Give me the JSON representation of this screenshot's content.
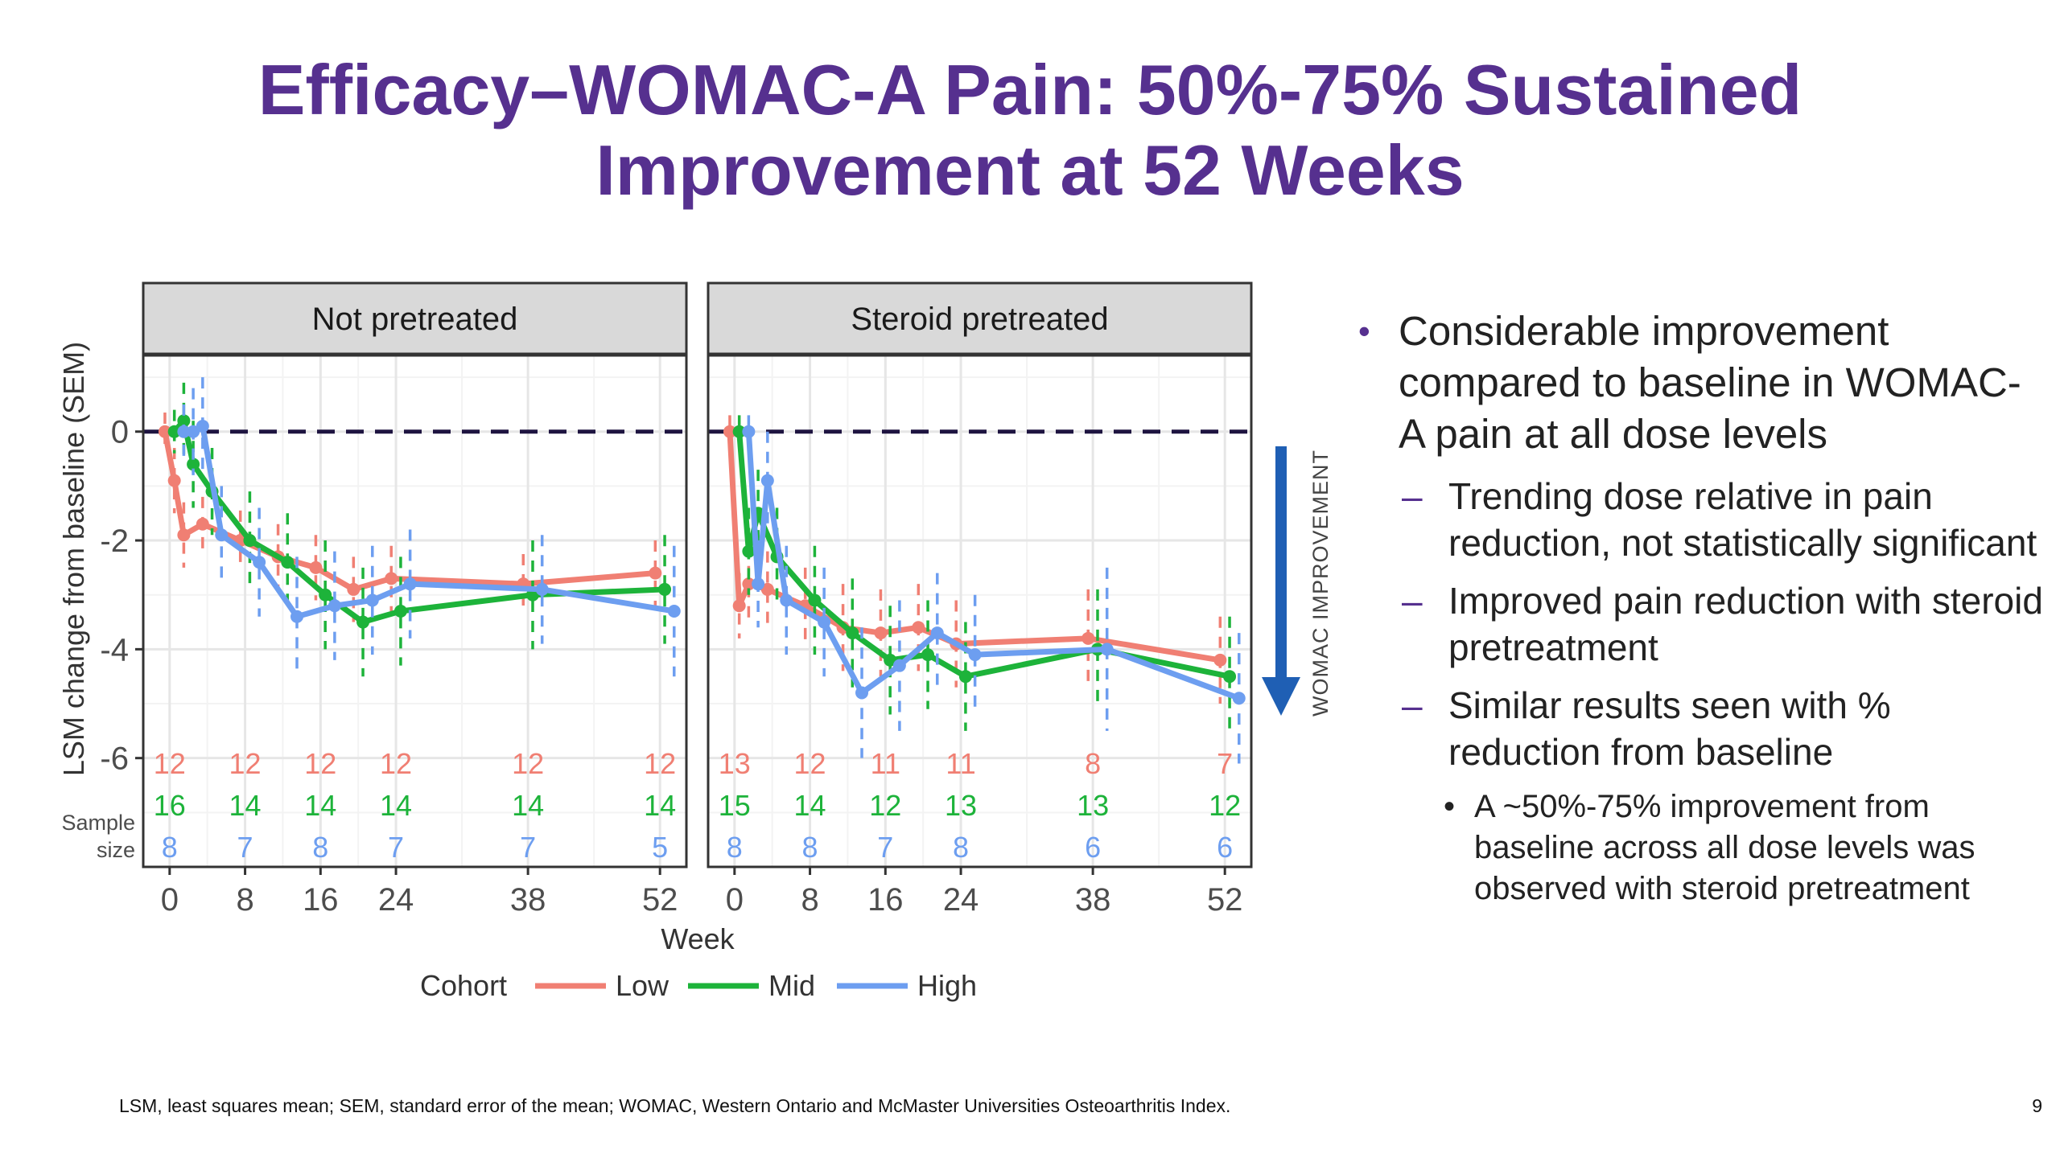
{
  "slide": {
    "title_line1": "Efficacy–WOMAC-A Pain: 50%-75% Sustained",
    "title_line2": "Improvement at 52 Weeks",
    "title_color": "#56308f",
    "footnote": "LSM, least squares mean; SEM, standard error of the mean; WOMAC, Western Ontario and McMaster Universities Osteoarthritis Index.",
    "page_number": "9"
  },
  "annotation": {
    "arrow_label": "WOMAC IMPROVEMENT",
    "arrow_color": "#1f5fb4"
  },
  "bullets": {
    "main": "Considerable improvement compared to baseline in WOMAC-A pain at all dose levels",
    "sub": [
      "Trending dose relative in pain reduction, not statistically significant",
      "Improved pain reduction with steroid pretreatment",
      "Similar results seen with % reduction from baseline"
    ],
    "subsub": "A ~50%-75% improvement from baseline across all dose levels was observed with steroid pretreatment"
  },
  "chart_data": {
    "type": "line",
    "ylabel": "LSM change from baseline (SEM)",
    "xlabel": "Week",
    "y_ticks": [
      0,
      -2,
      -4,
      -6
    ],
    "x_ticks": [
      0,
      8,
      16,
      24,
      38,
      52
    ],
    "ylim": [
      -8.0,
      1.4
    ],
    "xlim": [
      -2.8,
      54.8
    ],
    "reference_line": 0,
    "legend_title": "Cohort",
    "legend_position": "bottom",
    "sample_size_label": [
      "Sample",
      "size"
    ],
    "series_colors": {
      "Low": "#f07f73",
      "Mid": "#1db33a",
      "High": "#6d9ef0"
    },
    "panels": [
      {
        "name": "Not pretreated",
        "series": [
          {
            "name": "Low",
            "x": [
              0,
              1,
              2,
              4,
              8,
              12,
              16,
              20,
              24,
              38,
              52
            ],
            "y": [
              0,
              -0.9,
              -1.9,
              -1.7,
              -2.0,
              -2.3,
              -2.5,
              -2.9,
              -2.7,
              -2.8,
              -2.6
            ],
            "sem": [
              0.35,
              0.6,
              0.6,
              0.5,
              0.55,
              0.6,
              0.6,
              0.6,
              0.6,
              0.55,
              0.6
            ]
          },
          {
            "name": "Mid",
            "x": [
              0,
              1,
              2,
              4,
              8,
              12,
              16,
              20,
              24,
              38,
              52
            ],
            "y": [
              0,
              0.2,
              -0.6,
              -1.1,
              -2.0,
              -2.4,
              -3.0,
              -3.5,
              -3.3,
              -3.0,
              -2.9
            ],
            "sem": [
              0.4,
              0.7,
              0.8,
              0.8,
              0.9,
              0.9,
              1.0,
              1.0,
              1.0,
              1.0,
              1.0
            ]
          },
          {
            "name": "High",
            "x": [
              0,
              1,
              2,
              4,
              8,
              12,
              16,
              20,
              24,
              38,
              52
            ],
            "y": [
              0,
              0.0,
              0.1,
              -1.9,
              -2.4,
              -3.4,
              -3.2,
              -3.1,
              -2.8,
              -2.9,
              -3.3
            ],
            "sem": [
              0.5,
              0.8,
              0.9,
              0.9,
              1.0,
              1.1,
              1.0,
              1.0,
              1.0,
              1.0,
              1.2
            ]
          }
        ],
        "sample_size": {
          "weeks": [
            0,
            8,
            16,
            24,
            38,
            52
          ],
          "Low": [
            "12",
            "12",
            "12",
            "12",
            "12",
            "12"
          ],
          "Mid": [
            "16",
            "14",
            "14",
            "14",
            "14",
            "14"
          ],
          "High": [
            "8",
            "7",
            "8",
            "7",
            "7",
            "5"
          ]
        }
      },
      {
        "name": "Steroid pretreated",
        "series": [
          {
            "name": "Low",
            "x": [
              0,
              1,
              2,
              4,
              8,
              12,
              16,
              20,
              24,
              38,
              52
            ],
            "y": [
              0,
              -3.2,
              -2.8,
              -2.9,
              -3.2,
              -3.6,
              -3.7,
              -3.6,
              -3.9,
              -3.8,
              -4.2
            ],
            "sem": [
              0.3,
              0.6,
              0.7,
              0.7,
              0.7,
              0.8,
              0.8,
              0.8,
              0.8,
              0.9,
              0.8
            ]
          },
          {
            "name": "Mid",
            "x": [
              0,
              1,
              2,
              4,
              8,
              12,
              16,
              20,
              24,
              38,
              52
            ],
            "y": [
              0,
              -2.2,
              -1.5,
              -2.3,
              -3.1,
              -3.7,
              -4.2,
              -4.1,
              -4.5,
              -4.0,
              -4.5
            ],
            "sem": [
              0.3,
              0.8,
              0.8,
              0.9,
              1.0,
              1.0,
              1.0,
              1.0,
              1.0,
              1.1,
              1.1
            ]
          },
          {
            "name": "High",
            "x": [
              0,
              1,
              2,
              4,
              8,
              12,
              16,
              20,
              24,
              38,
              52
            ],
            "y": [
              0,
              -2.8,
              -0.9,
              -3.1,
              -3.5,
              -4.8,
              -4.3,
              -3.7,
              -4.1,
              -4.0,
              -4.9
            ],
            "sem": [
              0.3,
              0.8,
              0.9,
              1.0,
              1.0,
              1.2,
              1.2,
              1.1,
              1.1,
              1.5,
              1.2
            ]
          }
        ],
        "sample_size": {
          "weeks": [
            0,
            8,
            16,
            24,
            38,
            52
          ],
          "Low": [
            "13",
            "12",
            "11",
            "11",
            "8",
            "7"
          ],
          "Mid": [
            "15",
            "14",
            "12",
            "13",
            "13",
            "12"
          ],
          "High": [
            "8",
            "8",
            "7",
            "8",
            "6",
            "6"
          ]
        }
      }
    ]
  }
}
